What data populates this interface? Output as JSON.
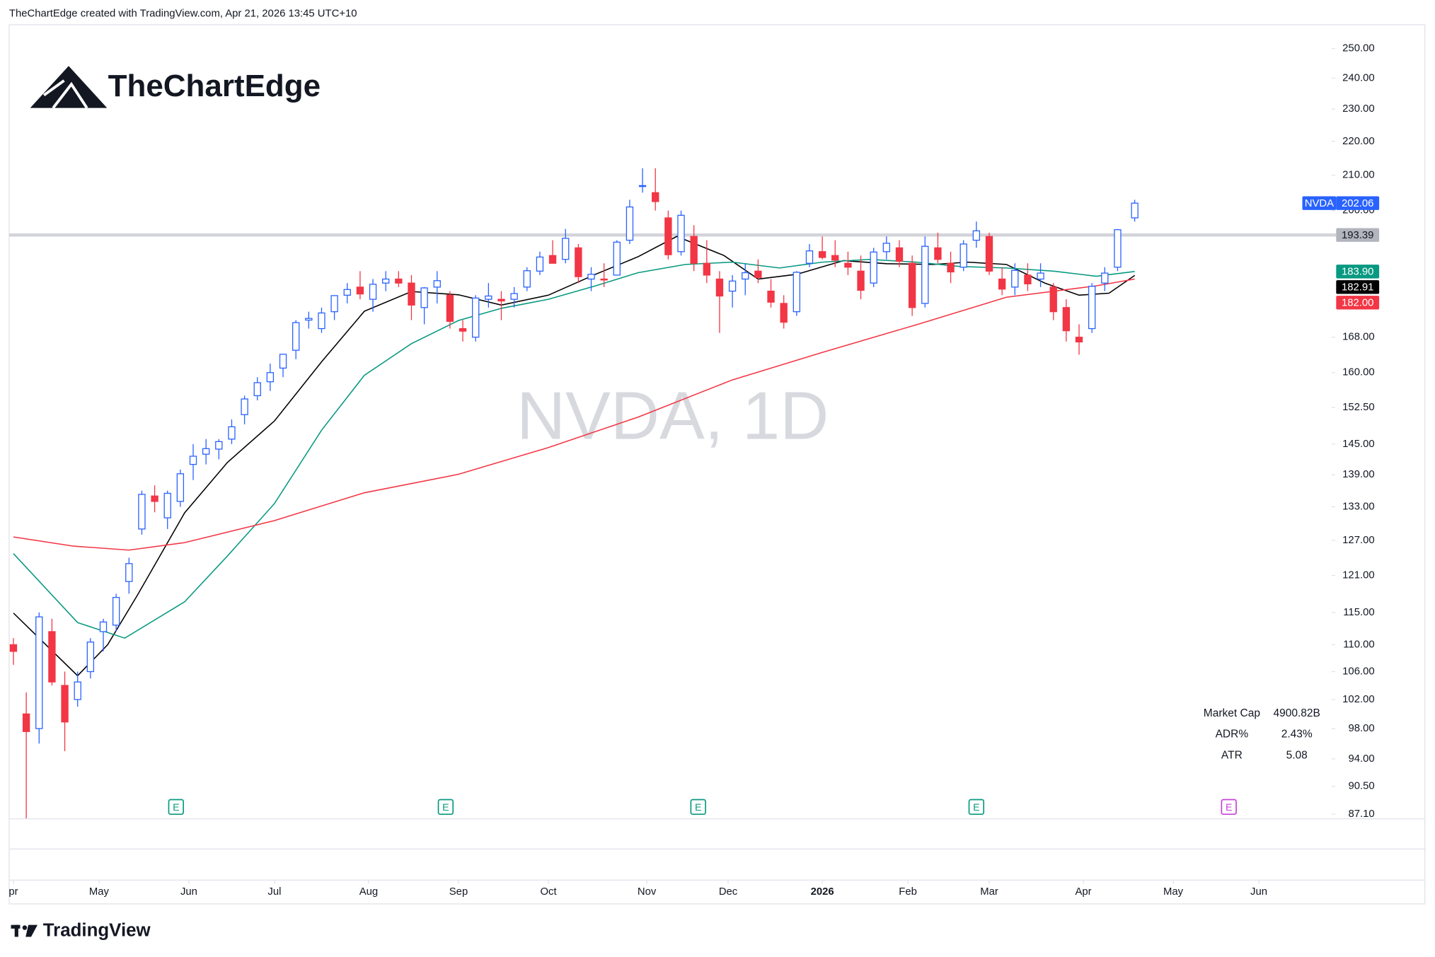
{
  "header": "TheChartEdge created with TradingView.com, Apr 21, 2026 13:45 UTC+10",
  "logo": "TheChartEdge",
  "footer": "TradingView",
  "stats": [
    {
      "label": "Market Cap",
      "value": "4900.82B"
    },
    {
      "label": "ADR%",
      "value": "2.43%"
    },
    {
      "label": "ATR",
      "value": "5.08"
    }
  ],
  "chart_data": {
    "type": "candlestick",
    "watermark": "NVDA, 1D",
    "log_scale": true,
    "up_color": "#2962ff",
    "down_color": "#f23645",
    "x": [
      0,
      3,
      6,
      9,
      12,
      15,
      18,
      21,
      24,
      27,
      30,
      33,
      36,
      39,
      42,
      45,
      48,
      51,
      54,
      57,
      60,
      63,
      66,
      69,
      72,
      75,
      78,
      81,
      84,
      87,
      90,
      93,
      96,
      99,
      102,
      105,
      108,
      111,
      114,
      117,
      120,
      123,
      126,
      129,
      132,
      135,
      138,
      141,
      144,
      147,
      150,
      153,
      156,
      159,
      162,
      165,
      168,
      171,
      174,
      177,
      180,
      183,
      186,
      189,
      192,
      195,
      198,
      201,
      204,
      207,
      210,
      213,
      216,
      219,
      222,
      225,
      228,
      231,
      234,
      237,
      240,
      243,
      246,
      249,
      252,
      255,
      258,
      262
    ],
    "open": [
      110,
      100,
      98,
      112,
      104,
      102,
      106,
      112,
      113,
      120,
      129,
      135,
      131,
      134,
      141,
      143,
      144,
      146,
      151,
      155,
      158,
      161,
      165,
      172,
      170,
      174,
      178,
      180,
      177,
      181,
      182,
      181,
      175,
      180,
      178,
      170,
      168,
      177,
      177,
      177,
      180,
      184,
      188,
      187,
      190,
      182,
      182,
      183,
      192,
      207,
      205,
      198,
      189,
      193,
      186,
      182,
      179,
      182,
      184,
      179,
      176,
      174,
      186,
      189,
      188,
      186,
      184,
      181,
      189,
      190,
      186,
      176,
      190,
      186,
      185,
      192,
      193,
      182,
      180,
      183,
      182,
      180,
      175,
      168,
      170,
      181,
      185,
      198
    ],
    "high": [
      111,
      103,
      115,
      114,
      106,
      106,
      111,
      114,
      118,
      124,
      136,
      137,
      136,
      140,
      145,
      146,
      146,
      150,
      155,
      159,
      162,
      164,
      172,
      174,
      175,
      178,
      181,
      184,
      182,
      184,
      184,
      183,
      180,
      184,
      179,
      172,
      178,
      181,
      179,
      180,
      185,
      189,
      192,
      195,
      191,
      185,
      186,
      192,
      203,
      212,
      212,
      200,
      200,
      196,
      192,
      184,
      183,
      186,
      187,
      182,
      178,
      184,
      191,
      193,
      192,
      189,
      188,
      190,
      193,
      192,
      188,
      193,
      194,
      189,
      192,
      197,
      194,
      185,
      186,
      186,
      186,
      181,
      177,
      171,
      181,
      185,
      195,
      203
    ],
    "low": [
      107,
      86.6,
      96,
      104,
      95,
      101,
      105,
      109,
      112,
      118,
      128,
      132,
      129,
      133,
      138,
      141,
      142,
      145,
      149,
      154,
      156,
      159,
      163,
      170,
      169,
      172,
      176,
      177,
      174,
      179,
      180,
      172,
      171,
      176,
      170,
      167,
      167,
      175,
      172,
      175,
      179,
      183,
      186,
      186,
      181,
      179,
      180,
      183,
      191,
      205,
      200,
      187,
      188,
      184,
      181,
      169,
      175,
      178,
      181,
      175,
      170,
      173,
      185,
      187,
      185,
      183,
      177,
      180,
      187,
      185,
      173,
      175,
      186,
      181,
      184,
      190,
      183,
      178,
      178,
      179,
      180,
      172,
      167,
      164,
      169,
      179,
      184,
      197
    ],
    "close": [
      109,
      97.6,
      114.3,
      104.5,
      98.9,
      104.5,
      110.4,
      113.5,
      117.4,
      123,
      135.3,
      134,
      135.5,
      139.2,
      142.6,
      144.1,
      145.5,
      148.5,
      154.3,
      157.8,
      160,
      164.1,
      171.4,
      172.4,
      173.7,
      177.9,
      179.4,
      178.3,
      180.7,
      182,
      181,
      175.6,
      179.8,
      181.6,
      171.7,
      169.4,
      177.3,
      177.8,
      176.6,
      178.4,
      184.1,
      187.6,
      186,
      192.5,
      182.6,
      183.2,
      181.8,
      191.5,
      201,
      207,
      202.5,
      188.2,
      198.7,
      186,
      183,
      177.8,
      181.5,
      183.6,
      182.4,
      176.3,
      171.5,
      183.7,
      189.2,
      187.5,
      186.8,
      185,
      179.2,
      188.9,
      191.2,
      186.5,
      175,
      190.4,
      187,
      183.8,
      191,
      194.5,
      184,
      179.5,
      184.2,
      180.8,
      183.5,
      174,
      169.5,
      166.9,
      180.2,
      183.5,
      194.8,
      202.06
    ],
    "series": [
      {
        "color": "#000000",
        "x": [
          0,
          15,
          22,
          29,
          40,
          50,
          61,
          72,
          82,
          93,
          104,
          114,
          125,
          136,
          146,
          155,
          166,
          174,
          183,
          194,
          204,
          215,
          223,
          232,
          241,
          249,
          256,
          262
        ],
        "values": [
          114.9,
          105.4,
          110,
          117.8,
          131.9,
          141.4,
          149.7,
          162.4,
          174.1,
          178.9,
          178.1,
          175.6,
          178,
          183.2,
          187.7,
          193,
          188,
          182,
          183.2,
          186.7,
          185.9,
          185.7,
          186.3,
          185.7,
          181,
          178,
          178.5,
          182.91
        ]
      },
      {
        "color": "#089981",
        "x": [
          0,
          15,
          26,
          40,
          50,
          61,
          72,
          82,
          93,
          104,
          114,
          125,
          136,
          146,
          157,
          168,
          179,
          189,
          200,
          211,
          221,
          232,
          243,
          253,
          262
        ],
        "values": [
          124.7,
          113.4,
          111,
          116.7,
          124.3,
          133.6,
          147.8,
          159.4,
          166.5,
          171.9,
          174.8,
          177,
          180.3,
          183.6,
          185.7,
          186.3,
          184.8,
          186.3,
          187,
          186.3,
          185.2,
          184.8,
          184,
          182.7,
          183.9
        ]
      },
      {
        "color": "#f23645",
        "x": [
          0,
          14,
          27,
          40,
          61,
          82,
          104,
          125,
          146,
          168,
          189,
          211,
          232,
          253,
          262
        ],
        "values": [
          127.6,
          126,
          125.3,
          126.6,
          130.5,
          135.6,
          139.1,
          144.3,
          150.5,
          158.4,
          164.5,
          170.9,
          177.5,
          180.3,
          182
        ]
      }
    ],
    "price_labels": [
      {
        "symbol": "NVDA",
        "value": 202.06,
        "label": "202.06",
        "color": "#2962ff",
        "text_color": "#ffffff"
      },
      {
        "value": 193.39,
        "label": "193.39",
        "color": "#b2b5be",
        "text_color": "#131722",
        "hline": true
      },
      {
        "value": 183.9,
        "label": "183.90",
        "color": "#089981",
        "text_color": "#ffffff"
      },
      {
        "value": 182.91,
        "label": "182.91",
        "color": "#000000",
        "text_color": "#ffffff"
      },
      {
        "value": 182.0,
        "label": "182.00",
        "color": "#f23645",
        "text_color": "#ffffff"
      }
    ],
    "earnings": {
      "label": "E",
      "x": [
        38,
        101,
        160,
        225,
        284
      ],
      "colors": [
        "#089981",
        "#089981",
        "#089981",
        "#089981",
        "#c542d6"
      ]
    },
    "xlim": [
      -1,
      308
    ],
    "ylim": [
      86.55,
      258
    ],
    "xticks": [
      {
        "value": 0,
        "label": "pr"
      },
      {
        "value": 20,
        "label": "May"
      },
      {
        "value": 41,
        "label": "Jun"
      },
      {
        "value": 61,
        "label": "Jul"
      },
      {
        "value": 83,
        "label": "Aug"
      },
      {
        "value": 104,
        "label": "Sep"
      },
      {
        "value": 125,
        "label": "Oct"
      },
      {
        "value": 148,
        "label": "Nov"
      },
      {
        "value": 167,
        "label": "Dec"
      },
      {
        "value": 189,
        "label": "2026",
        "bold": true
      },
      {
        "value": 209,
        "label": "Feb"
      },
      {
        "value": 228,
        "label": "Mar"
      },
      {
        "value": 250,
        "label": "Apr"
      },
      {
        "value": 271,
        "label": "May"
      },
      {
        "value": 291,
        "label": "Jun"
      }
    ],
    "yticks": [
      {
        "value": 250,
        "label": "250.00"
      },
      {
        "value": 240,
        "label": "240.00"
      },
      {
        "value": 230,
        "label": "230.00"
      },
      {
        "value": 220,
        "label": "220.00"
      },
      {
        "value": 210,
        "label": "210.00"
      },
      {
        "value": 200,
        "label": "200.00"
      },
      {
        "value": 168,
        "label": "168.00"
      },
      {
        "value": 160,
        "label": "160.00"
      },
      {
        "value": 152.5,
        "label": "152.50"
      },
      {
        "value": 145,
        "label": "145.00"
      },
      {
        "value": 139,
        "label": "139.00"
      },
      {
        "value": 133,
        "label": "133.00"
      },
      {
        "value": 127,
        "label": "127.00"
      },
      {
        "value": 121,
        "label": "121.00"
      },
      {
        "value": 115,
        "label": "115.00"
      },
      {
        "value": 110,
        "label": "110.00"
      },
      {
        "value": 106,
        "label": "106.00"
      },
      {
        "value": 102,
        "label": "102.00"
      },
      {
        "value": 98,
        "label": "98.00"
      },
      {
        "value": 94,
        "label": "94.00"
      },
      {
        "value": 90.5,
        "label": "90.50"
      },
      {
        "value": 87.1,
        "label": "87.10"
      }
    ]
  }
}
